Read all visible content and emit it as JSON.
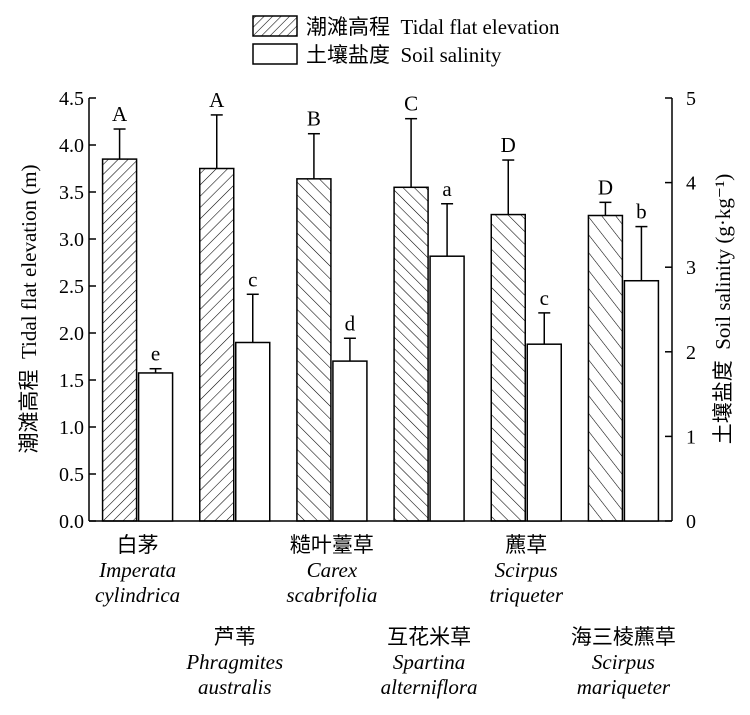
{
  "chart_data": {
    "type": "bar",
    "categories": [
      {
        "cn": "白茅",
        "latin": [
          "Imperata",
          "cylindrica"
        ]
      },
      {
        "cn": "芦苇",
        "latin": [
          "Phragmites",
          "australis"
        ]
      },
      {
        "cn": "糙叶薹草",
        "latin": [
          "Carex",
          "scabrifolia"
        ]
      },
      {
        "cn": "互花米草",
        "latin": [
          "Spartina",
          "alterniflora"
        ]
      },
      {
        "cn": "藨草",
        "latin": [
          "Scirpus",
          "triqueter"
        ]
      },
      {
        "cn": "海三棱藨草",
        "latin": [
          "Scirpus",
          "mariqueter"
        ]
      }
    ],
    "series": [
      {
        "name": "潮滩高程  Tidal flat elevation",
        "axis": "left",
        "pattern": "diagonal hatch",
        "values": [
          3.85,
          3.75,
          3.64,
          3.55,
          3.26,
          3.25
        ],
        "errors": [
          0.32,
          0.57,
          0.48,
          0.73,
          0.58,
          0.14
        ],
        "labels": [
          "A",
          "A",
          "B",
          "C",
          "D",
          "D"
        ]
      },
      {
        "name": "土壤盐度  Soil salinity",
        "axis": "right",
        "pattern": "white",
        "values": [
          1.75,
          2.11,
          1.89,
          3.13,
          2.09,
          2.84
        ],
        "errors": [
          0.05,
          0.57,
          0.27,
          0.62,
          0.37,
          0.64
        ],
        "labels": [
          "e",
          "c",
          "d",
          "a",
          "c",
          "b"
        ]
      }
    ],
    "ylabel_left": "潮滩高程  Tidal flat elevation (m)",
    "ylabel_right": "土壤盐度  Soil salinity (g·kg⁻¹)",
    "ylim_left": [
      0,
      4.5
    ],
    "yticks_left": [
      "0.0",
      "0.5",
      "1.0",
      "1.5",
      "2.0",
      "2.5",
      "3.0",
      "3.5",
      "4.0",
      "4.5"
    ],
    "ylim_right": [
      0,
      5
    ],
    "yticks_right": [
      "0",
      "1",
      "2",
      "3",
      "4",
      "5"
    ],
    "legend_position": "top-center",
    "grid": false
  }
}
